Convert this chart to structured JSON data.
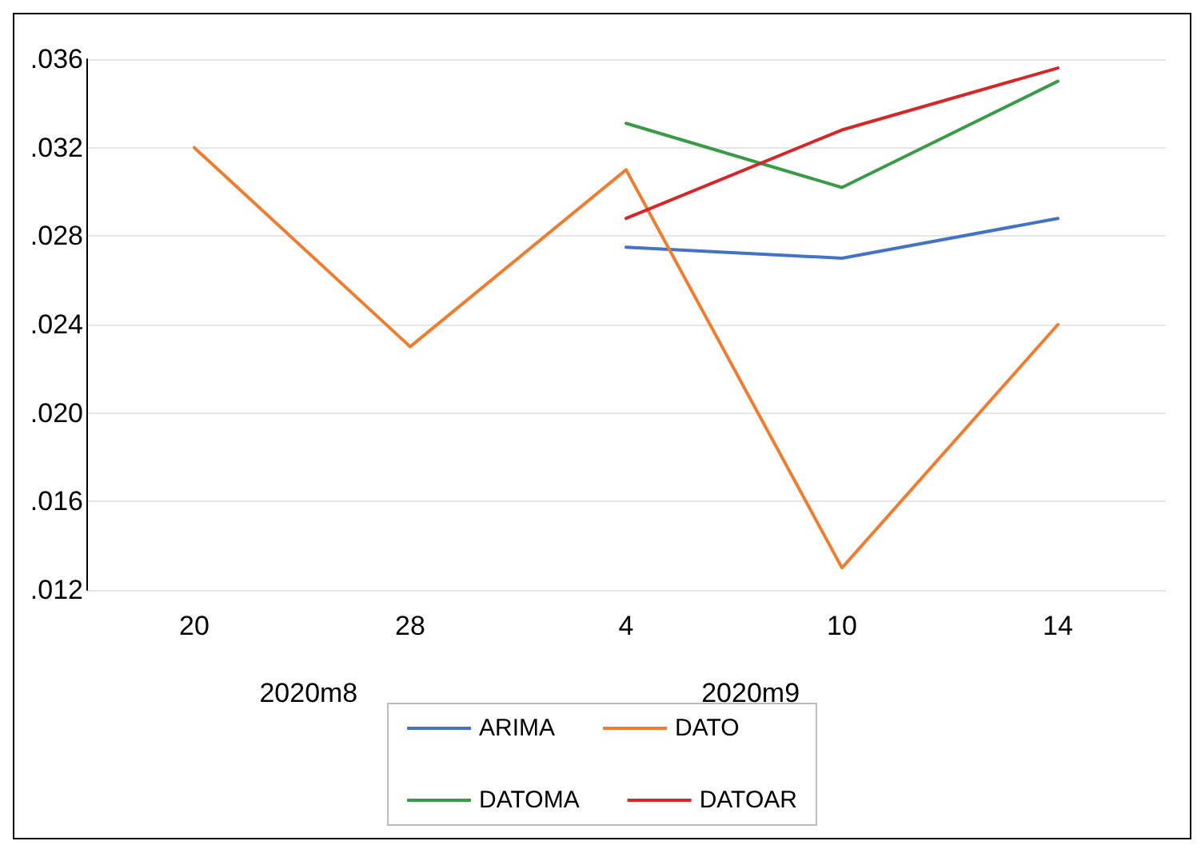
{
  "chart_data": {
    "type": "line",
    "categories": [
      "20",
      "28",
      "4",
      "10",
      "14"
    ],
    "series": [
      {
        "name": "ARIMA",
        "color": "#4472c4",
        "values": [
          null,
          null,
          0.0275,
          0.027,
          0.0288
        ]
      },
      {
        "name": "DATO",
        "color": "#ed7d31",
        "values": [
          0.032,
          0.023,
          0.031,
          0.013,
          0.024
        ]
      },
      {
        "name": "DATOMA",
        "color": "#3a9a48",
        "values": [
          null,
          null,
          0.0331,
          0.0302,
          0.035
        ]
      },
      {
        "name": "DATOAR",
        "color": "#d62728",
        "values": [
          null,
          null,
          0.0288,
          0.0328,
          0.0356
        ]
      }
    ],
    "ylim": [
      0.012,
      0.036
    ],
    "yticks": [
      {
        "value": 0.012,
        "label": ".012"
      },
      {
        "value": 0.016,
        "label": ".016"
      },
      {
        "value": 0.02,
        "label": ".020"
      },
      {
        "value": 0.024,
        "label": ".024"
      },
      {
        "value": 0.028,
        "label": ".028"
      },
      {
        "value": 0.032,
        "label": ".032"
      },
      {
        "value": 0.036,
        "label": ".036"
      }
    ],
    "annotations": [
      "2020m8",
      "2020m9"
    ],
    "grid": "y",
    "legend": "bottom",
    "marker": "none",
    "line_style": "solid"
  }
}
